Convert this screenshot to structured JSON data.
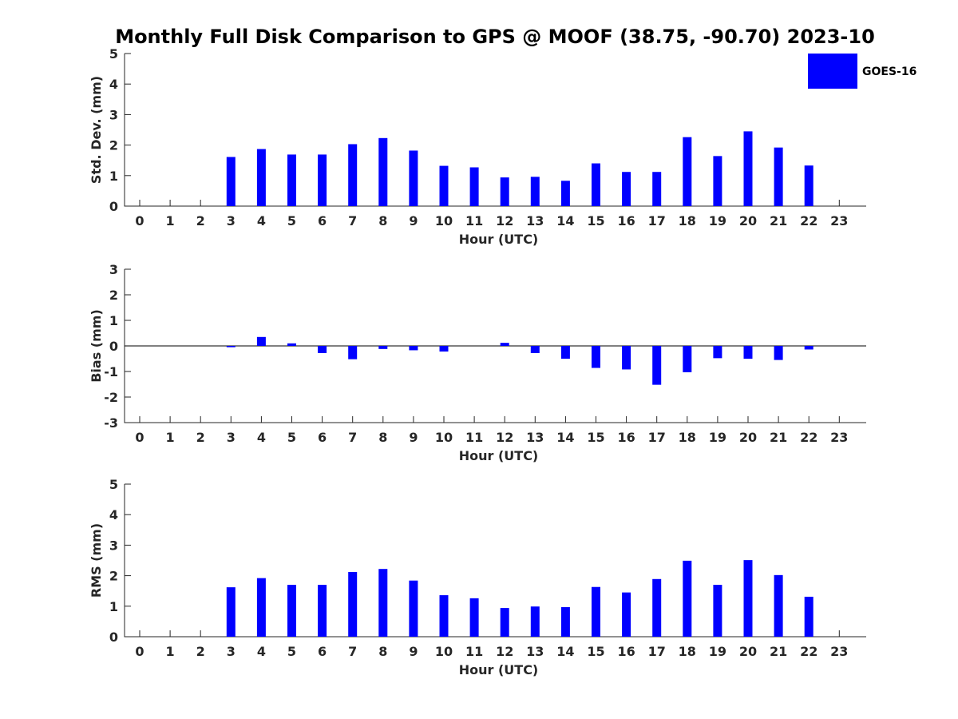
{
  "title": "Monthly Full Disk Comparison to GPS @ MOOF (38.75, -90.70) 2023-10",
  "legend": {
    "label": "GOES-16",
    "color": "#0000ff",
    "position": "top-right"
  },
  "chart_data": [
    {
      "type": "bar",
      "ylabel": "Std. Dev. (mm)",
      "xlabel": "Hour (UTC)",
      "ylim": [
        0,
        5
      ],
      "yticks": [
        0,
        1,
        2,
        3,
        4,
        5
      ],
      "categories": [
        "0",
        "1",
        "2",
        "3",
        "4",
        "5",
        "6",
        "7",
        "8",
        "9",
        "10",
        "11",
        "12",
        "13",
        "14",
        "15",
        "16",
        "17",
        "18",
        "19",
        "20",
        "21",
        "22",
        "23"
      ],
      "series": [
        {
          "name": "GOES-16",
          "values": [
            null,
            null,
            null,
            1.61,
            1.87,
            1.69,
            1.69,
            2.03,
            2.23,
            1.82,
            1.32,
            1.27,
            0.94,
            0.96,
            0.83,
            1.4,
            1.12,
            1.12,
            2.26,
            1.64,
            2.45,
            1.92,
            1.33,
            null
          ]
        }
      ]
    },
    {
      "type": "bar",
      "ylabel": "Bias (mm)",
      "xlabel": "Hour (UTC)",
      "ylim": [
        -3,
        3
      ],
      "yticks": [
        -3,
        -2,
        -1,
        0,
        1,
        2,
        3
      ],
      "categories": [
        "0",
        "1",
        "2",
        "3",
        "4",
        "5",
        "6",
        "7",
        "8",
        "9",
        "10",
        "11",
        "12",
        "13",
        "14",
        "15",
        "16",
        "17",
        "18",
        "19",
        "20",
        "21",
        "22",
        "23"
      ],
      "series": [
        {
          "name": "GOES-16",
          "values": [
            null,
            null,
            null,
            -0.05,
            0.35,
            0.1,
            -0.28,
            -0.52,
            -0.12,
            -0.17,
            -0.22,
            null,
            0.12,
            -0.28,
            -0.5,
            -0.86,
            -0.92,
            -1.52,
            -1.03,
            -0.48,
            -0.5,
            -0.55,
            -0.14,
            null
          ]
        }
      ]
    },
    {
      "type": "bar",
      "ylabel": "RMS (mm)",
      "xlabel": "Hour (UTC)",
      "ylim": [
        0,
        5
      ],
      "yticks": [
        0,
        1,
        2,
        3,
        4,
        5
      ],
      "categories": [
        "0",
        "1",
        "2",
        "3",
        "4",
        "5",
        "6",
        "7",
        "8",
        "9",
        "10",
        "11",
        "12",
        "13",
        "14",
        "15",
        "16",
        "17",
        "18",
        "19",
        "20",
        "21",
        "22",
        "23"
      ],
      "series": [
        {
          "name": "GOES-16",
          "values": [
            null,
            null,
            null,
            1.62,
            1.92,
            1.7,
            1.7,
            2.12,
            2.22,
            1.84,
            1.36,
            1.26,
            0.94,
            0.99,
            0.97,
            1.63,
            1.45,
            1.89,
            2.49,
            1.7,
            2.51,
            2.02,
            1.31,
            null
          ]
        }
      ]
    }
  ]
}
